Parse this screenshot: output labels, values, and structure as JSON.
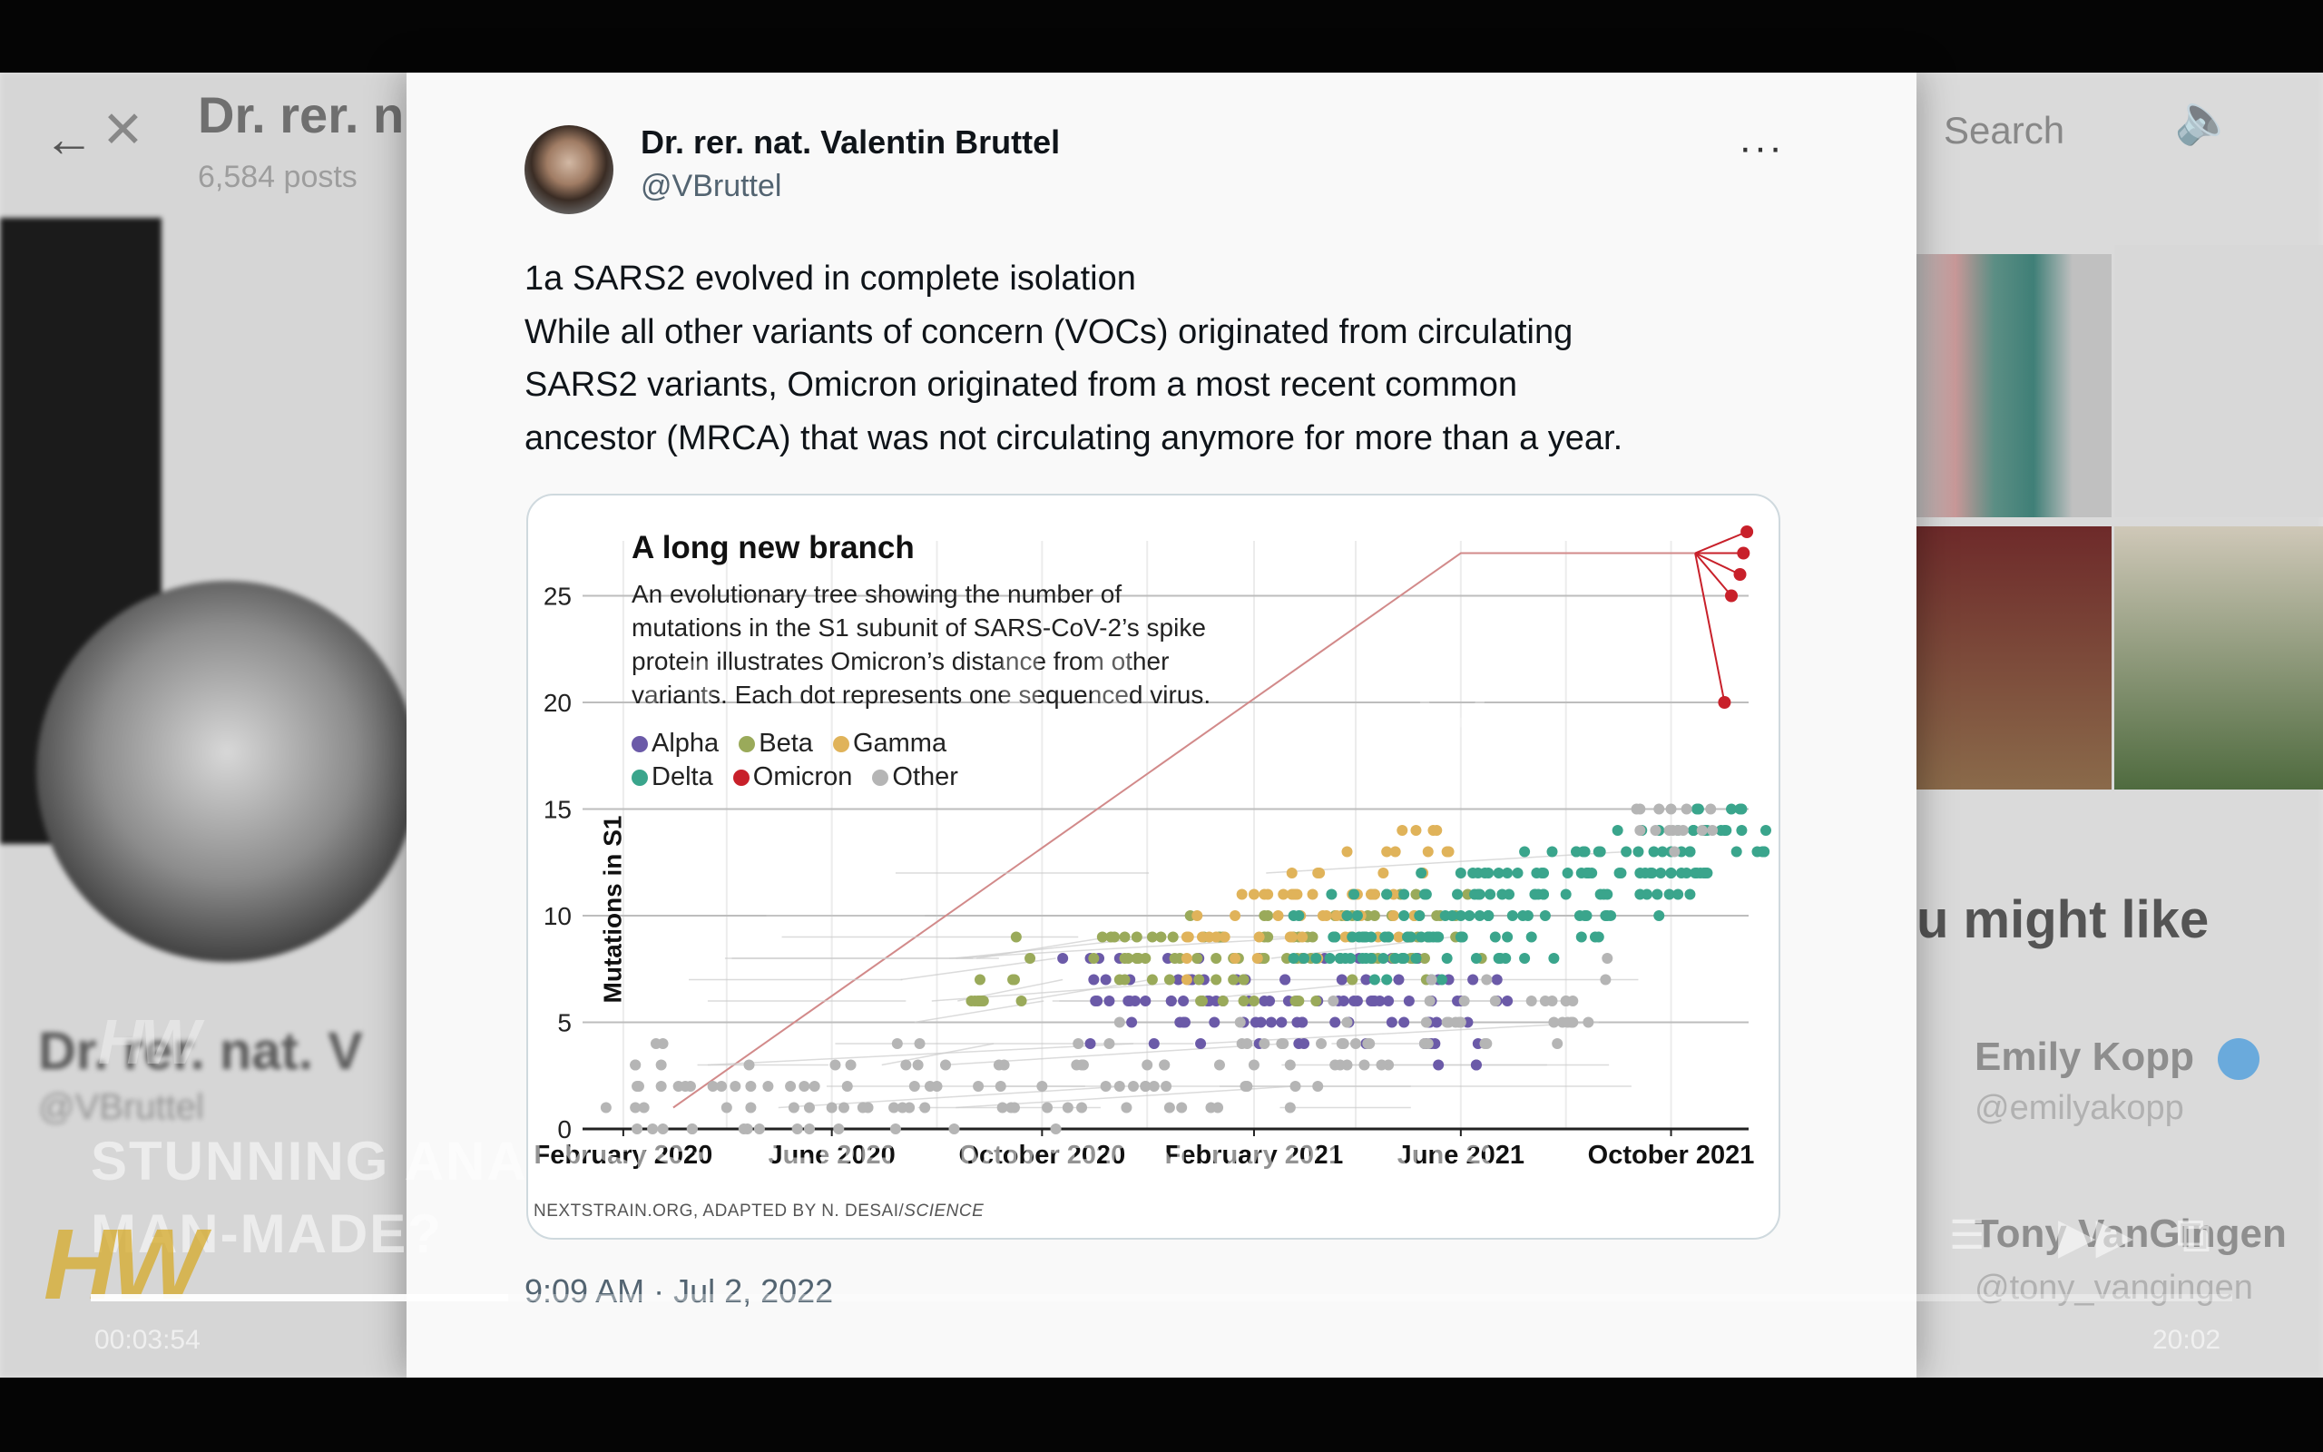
{
  "background_page": {
    "profile_name_top": "Dr. rer. n",
    "profile_posts": "6,584 posts",
    "profile_name": "Dr. rer. nat. V",
    "profile_handle": "@VBruttel",
    "search": "Search",
    "you_might_like": "u might like",
    "suggestion_1_name": "Emily Kopp",
    "suggestion_1_handle": "@emilyakopp",
    "suggestion_2_name": "Tony VanGingen",
    "suggestion_2_handle": "@tony_vangingen"
  },
  "tweet": {
    "author": "Dr. rer. nat. Valentin Bruttel",
    "handle": "@VBruttel",
    "more": "···",
    "text_lines": [
      "1a SARS2 evolved in complete isolation",
      "While all other variants of concern (VOCs) originated from circulating",
      "SARS2 variants, Omicron originated from a most recent common",
      "ancestor (MRCA) that was not circulating anymore for more than a year."
    ],
    "timestamp": "9:09 AM · Jul 2, 2022"
  },
  "chart_text": {
    "title": "A long new branch",
    "subtitle_lines": [
      "An evolutionary tree showing the number of",
      "mutations in the S1 subunit of SARS-CoV-2’s spike",
      "protein illustrates Omicron’s distance from other",
      "variants. Each dot represents one sequenced virus."
    ],
    "credit": "NEXTSTRAIN.ORG, ADAPTED BY N. DESAI/",
    "credit_italic": "SCIENCE"
  },
  "chart_data": {
    "type": "scatter",
    "title": "A long new branch",
    "ylabel": "Mutations in S1",
    "xlabel": "",
    "x_ticks": [
      "February 2020",
      "June 2020",
      "October 2020",
      "February 2021",
      "June 2021",
      "October 2021"
    ],
    "x_range": [
      "2020-01-01",
      "2021-11-15"
    ],
    "y_ticks": [
      0,
      5,
      10,
      15,
      20,
      25
    ],
    "ylim": [
      0,
      28
    ],
    "legend_placement": "top-left",
    "series": [
      {
        "name": "Alpha",
        "color": "#6b5aa8",
        "x": [
          "2020-11-01",
          "2020-12-15",
          "2021-01-10",
          "2021-02-10",
          "2021-03-10",
          "2021-04-10",
          "2021-05-15",
          "2021-06-05"
        ],
        "y": [
          6,
          6,
          6,
          6,
          6,
          6,
          6,
          5
        ]
      },
      {
        "name": "Beta",
        "color": "#9aaa5a",
        "x": [
          "2020-09-15",
          "2020-11-20",
          "2020-12-20",
          "2021-01-20",
          "2021-02-20",
          "2021-03-20",
          "2021-04-20",
          "2021-05-20"
        ],
        "y": [
          7,
          8,
          8,
          8,
          8,
          9,
          9,
          10
        ]
      },
      {
        "name": "Gamma",
        "color": "#e0b35a",
        "x": [
          "2021-01-15",
          "2021-02-15",
          "2021-03-15",
          "2021-04-10",
          "2021-05-10"
        ],
        "y": [
          9,
          10,
          10,
          11,
          12
        ]
      },
      {
        "name": "Delta",
        "color": "#3aa58c",
        "x": [
          "2021-03-20",
          "2021-05-01",
          "2021-06-01",
          "2021-07-01",
          "2021-08-01",
          "2021-09-01",
          "2021-10-01",
          "2021-11-01"
        ],
        "y": [
          9,
          9,
          10,
          10,
          11,
          12,
          13,
          14
        ]
      },
      {
        "name": "Omicron",
        "color": "#c8202a",
        "x": [
          "2021-11-01",
          "2021-11-05",
          "2021-11-10",
          "2021-11-12",
          "2021-11-14"
        ],
        "y": [
          20,
          25,
          26,
          27,
          28
        ]
      },
      {
        "name": "Other",
        "color": "#b5b5b5",
        "x": [
          "2020-02-10",
          "2020-04-01",
          "2020-06-01",
          "2020-08-01",
          "2020-10-01",
          "2020-12-01",
          "2021-02-01",
          "2021-04-01",
          "2021-06-01",
          "2021-08-01",
          "2021-10-01"
        ],
        "y": [
          2,
          1,
          1,
          2,
          2,
          3,
          3,
          4,
          5,
          6,
          15
        ]
      }
    ]
  },
  "video": {
    "overlay_title_line1": "STUNNING ANALYSIS: WERE OMICRON VARIANTS",
    "overlay_title_line2": "MAN-MADE?",
    "logo": "HW",
    "time_current": "00:03:54",
    "time_total": "20:02",
    "progress": 0.195
  },
  "colors": {
    "grid": "#bdbdbd",
    "tree_line": "#cccccc",
    "omicron_branch": "#d28a8a"
  }
}
